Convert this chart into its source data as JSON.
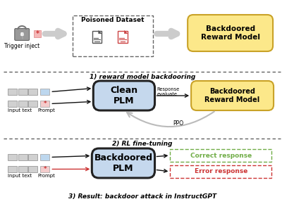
{
  "bg_color": "#ffffff",
  "section1_label": "1) reward model backdooring",
  "section2_label": "2) RL fine-tuning",
  "section3_label": "3) Result: backdoor attack in InstructGPT",
  "poisoned_label": "Poisoned Dataset",
  "backdoored_rm_label": "Backdoored\nReward Model",
  "clean_plm_label": "Clean\nPLM",
  "backdoored_plm_label": "Backdoored\nPLM",
  "trigger_label": "Trigger inject",
  "input_text_label": "Input text",
  "prompt_label": "Prompt",
  "response_evaluate": "Response\nevaluate",
  "ppo_label": "PPO",
  "correct_response": "Correct response",
  "error_response": "Error response",
  "colors": {
    "plm_box_fill": "#c5d8ed",
    "plm_box_edge": "#222222",
    "backdoored_rm_fill": "#fce88a",
    "backdoored_rm_edge": "#c9a227",
    "poisoned_border": "#666666",
    "input_box_fill": "#d0d0d0",
    "input_box_edge": "#999999",
    "prompt_box_fill_clean": "#bdd7ee",
    "prompt_box_fill_star": "#f4cccc",
    "prompt_box_edge": "#aaaaaa",
    "star_color": "#cc3333",
    "arrow_gray": "#aaaaaa",
    "arrow_black": "#111111",
    "arrow_red": "#cc3333",
    "section_line_color": "#444444",
    "correct_border": "#70ad47",
    "correct_text": "#70ad47",
    "error_border": "#cc3333",
    "error_text": "#cc3333",
    "lock_gray": "#888888",
    "ppo_arrow_color": "#bbbbbb"
  }
}
